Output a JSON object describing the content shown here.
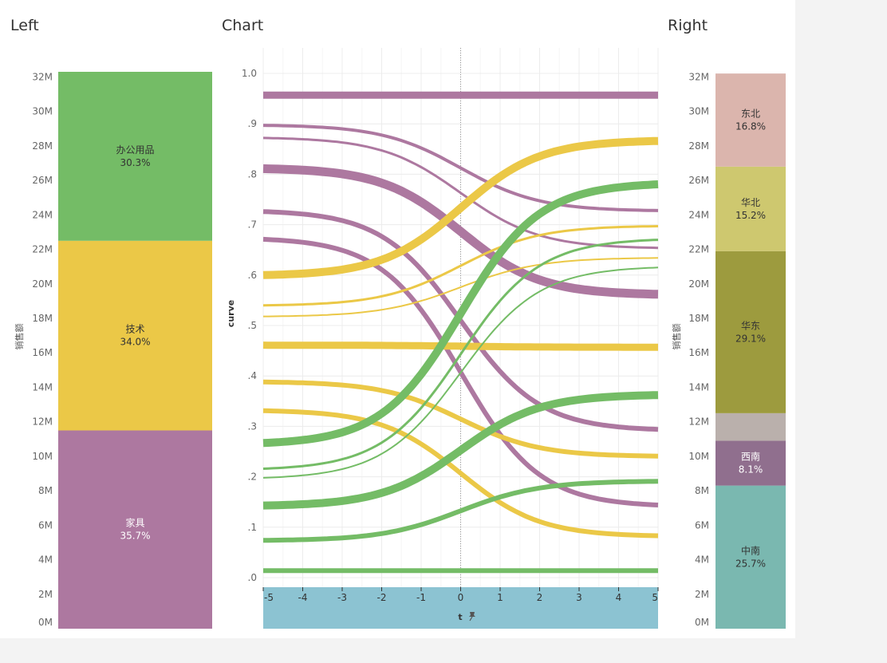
{
  "panes": {
    "left_title": "Left",
    "center_title": "Chart",
    "right_title": "Right"
  },
  "colors": {
    "purple": "#ad78a0",
    "yellow": "#ebc847",
    "green": "#74bc66",
    "axis_band": "#8cc3d2"
  },
  "chart_data": [
    {
      "type": "bar",
      "stacked": true,
      "pane": "Left",
      "ylabel": "销售额",
      "ylim": [
        0,
        32.3
      ],
      "y_ticks": [
        "0M",
        "2M",
        "4M",
        "6M",
        "8M",
        "10M",
        "12M",
        "14M",
        "16M",
        "18M",
        "20M",
        "22M",
        "24M",
        "26M",
        "28M",
        "30M",
        "32M"
      ],
      "segments": [
        {
          "name": "家具",
          "label": "家具",
          "pct": "35.7%",
          "value": 11.5,
          "color": "#ad78a0",
          "text_color": "#ffffff"
        },
        {
          "name": "技术",
          "label": "技术",
          "pct": "34.0%",
          "value": 11.0,
          "color": "#ebc847",
          "text_color": "#333333"
        },
        {
          "name": "办公用品",
          "label": "办公用品",
          "pct": "30.3%",
          "value": 9.8,
          "color": "#74bc66",
          "text_color": "#333333"
        }
      ]
    },
    {
      "type": "line",
      "pane": "Chart",
      "subtype": "sankey-sigmoid-curves",
      "xlabel": "t",
      "ylabel": "curve",
      "xlim": [
        -5,
        5
      ],
      "ylim": [
        0,
        1.0
      ],
      "x_ticks": [
        "-5",
        "-4",
        "-3",
        "-2",
        "-1",
        "0",
        "1",
        "2",
        "3",
        "4",
        "5"
      ],
      "y_ticks": [
        ".0",
        ".1",
        ".2",
        ".3",
        ".4",
        ".5",
        ".6",
        ".7",
        ".8",
        ".9",
        "1.0"
      ],
      "reference_line_x": 0,
      "series": [
        {
          "color": "#ad78a0",
          "start": 0.957,
          "end": 0.957,
          "width": 9
        },
        {
          "color": "#ad78a0",
          "start": 0.897,
          "end": 0.728,
          "width": 4
        },
        {
          "color": "#ad78a0",
          "start": 0.872,
          "end": 0.654,
          "width": 3
        },
        {
          "color": "#ad78a0",
          "start": 0.811,
          "end": 0.562,
          "width": 11
        },
        {
          "color": "#ad78a0",
          "start": 0.726,
          "end": 0.294,
          "width": 6
        },
        {
          "color": "#ad78a0",
          "start": 0.671,
          "end": 0.144,
          "width": 6
        },
        {
          "color": "#ebc847",
          "start": 0.6,
          "end": 0.866,
          "width": 10
        },
        {
          "color": "#ebc847",
          "start": 0.54,
          "end": 0.697,
          "width": 3
        },
        {
          "color": "#ebc847",
          "start": 0.518,
          "end": 0.634,
          "width": 2
        },
        {
          "color": "#ebc847",
          "start": 0.461,
          "end": 0.457,
          "width": 9
        },
        {
          "color": "#ebc847",
          "start": 0.388,
          "end": 0.241,
          "width": 6
        },
        {
          "color": "#ebc847",
          "start": 0.331,
          "end": 0.083,
          "width": 6
        },
        {
          "color": "#74bc66",
          "start": 0.267,
          "end": 0.78,
          "width": 10
        },
        {
          "color": "#74bc66",
          "start": 0.216,
          "end": 0.67,
          "width": 3
        },
        {
          "color": "#74bc66",
          "start": 0.198,
          "end": 0.615,
          "width": 2
        },
        {
          "color": "#74bc66",
          "start": 0.143,
          "end": 0.362,
          "width": 10
        },
        {
          "color": "#74bc66",
          "start": 0.074,
          "end": 0.191,
          "width": 6
        },
        {
          "color": "#74bc66",
          "start": 0.014,
          "end": 0.014,
          "width": 6
        }
      ]
    },
    {
      "type": "bar",
      "stacked": true,
      "pane": "Right",
      "ylabel": "销售额",
      "ylim": [
        0,
        32.3
      ],
      "y_ticks": [
        "0M",
        "2M",
        "4M",
        "6M",
        "8M",
        "10M",
        "12M",
        "14M",
        "16M",
        "18M",
        "20M",
        "22M",
        "24M",
        "26M",
        "28M",
        "30M",
        "32M"
      ],
      "segments": [
        {
          "name": "中南",
          "label": "中南",
          "pct": "25.7%",
          "value": 8.3,
          "color": "#7ab8b0",
          "text_color": "#333333"
        },
        {
          "name": "西南",
          "label": "西南",
          "pct": "8.1%",
          "value": 2.6,
          "color": "#906f8e",
          "text_color": "#ffffff"
        },
        {
          "name": "",
          "label": "",
          "pct": "",
          "value": 1.6,
          "color": "#bab0ac",
          "text_color": "#333333"
        },
        {
          "name": "华东",
          "label": "华东",
          "pct": "29.1%",
          "value": 9.4,
          "color": "#9d9b3e",
          "text_color": "#333333"
        },
        {
          "name": "华北",
          "label": "华北",
          "pct": "15.2%",
          "value": 4.9,
          "color": "#cec86f",
          "text_color": "#333333"
        },
        {
          "name": "东北",
          "label": "东北",
          "pct": "16.8%",
          "value": 5.4,
          "color": "#dbb5ad",
          "text_color": "#333333"
        }
      ]
    }
  ]
}
